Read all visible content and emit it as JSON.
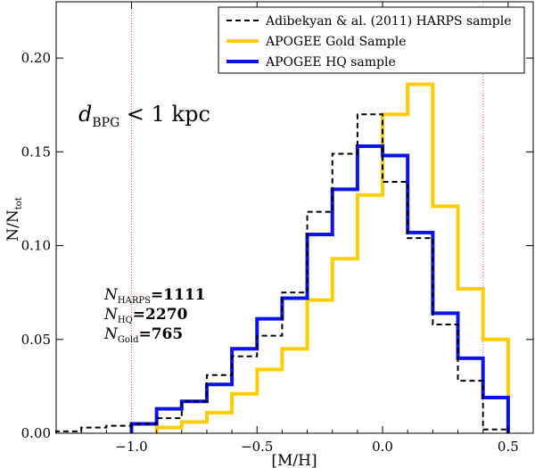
{
  "chart_data": {
    "type": "step",
    "title": "",
    "xlabel": "[M/H]",
    "ylabel": "N/N_tot",
    "ylabel_main": "N/N",
    "ylabel_sub": "tot",
    "xlim": [
      -1.3,
      0.6
    ],
    "ylim": [
      0.0,
      0.23
    ],
    "xticks": [
      -1.0,
      -0.5,
      0.0,
      0.5
    ],
    "xtick_labels": [
      "−1.0",
      "−0.5",
      "0.0",
      "0.5"
    ],
    "yticks": [
      0.0,
      0.05,
      0.1,
      0.15,
      0.2
    ],
    "ytick_labels": [
      "0.00",
      "0.05",
      "0.10",
      "0.15",
      "0.20"
    ],
    "vlines": [
      -1.0,
      0.4
    ],
    "vline_color": "#ff5555",
    "annotation_region": {
      "main": "d",
      "sub": "BPG",
      "rest": " < 1 kpc"
    },
    "counts": [
      {
        "main": "N",
        "sub": "HARPS",
        "value": "=1111"
      },
      {
        "main": "N",
        "sub": "HQ",
        "value": "=2270"
      },
      {
        "main": "N",
        "sub": "Gold",
        "value": "=765"
      }
    ],
    "legend_position": "top-right",
    "series": [
      {
        "name": "Adibekyan & al. (2011) HARPS sample",
        "color": "#000000",
        "style": "dashed",
        "edges": [
          -1.3,
          -1.2,
          -1.1,
          -1.0,
          -0.9,
          -0.8,
          -0.7,
          -0.6,
          -0.5,
          -0.4,
          -0.3,
          -0.2,
          -0.1,
          0.0,
          0.1,
          0.2,
          0.3,
          0.4,
          0.5
        ],
        "values": [
          0.001,
          0.003,
          0.004,
          0.005,
          0.008,
          0.017,
          0.031,
          0.041,
          0.052,
          0.075,
          0.118,
          0.149,
          0.17,
          0.134,
          0.104,
          0.058,
          0.028,
          0.002
        ]
      },
      {
        "name": "APOGEE Gold Sample",
        "color": "#ffcc00",
        "style": "solid",
        "edges": [
          -0.9,
          -0.8,
          -0.7,
          -0.6,
          -0.5,
          -0.4,
          -0.3,
          -0.2,
          -0.1,
          0.0,
          0.1,
          0.2,
          0.3,
          0.4,
          0.5
        ],
        "values": [
          0.003,
          0.006,
          0.011,
          0.021,
          0.034,
          0.045,
          0.071,
          0.093,
          0.127,
          0.17,
          0.186,
          0.121,
          0.077,
          0.05,
          0.0
        ]
      },
      {
        "name": "APOGEE HQ sample",
        "color": "#0a14e6",
        "style": "solid",
        "edges": [
          -1.0,
          -0.9,
          -0.8,
          -0.7,
          -0.6,
          -0.5,
          -0.4,
          -0.3,
          -0.2,
          -0.1,
          0.0,
          0.1,
          0.2,
          0.3,
          0.4,
          0.5
        ],
        "values": [
          0.005,
          0.013,
          0.017,
          0.026,
          0.045,
          0.061,
          0.072,
          0.106,
          0.13,
          0.153,
          0.148,
          0.107,
          0.064,
          0.04,
          0.019
        ]
      }
    ]
  }
}
